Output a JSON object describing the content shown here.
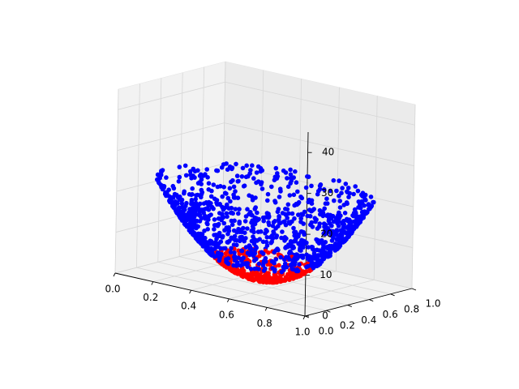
{
  "chart_data": {
    "type": "scatter",
    "projection": "3d",
    "title": "",
    "xlabel": "",
    "ylabel": "",
    "zlabel": "",
    "xlim": [
      0.0,
      1.0
    ],
    "ylim": [
      0.0,
      1.0
    ],
    "zlim": [
      0,
      45
    ],
    "xticks": [
      "0.0",
      "0.2",
      "0.4",
      "0.6",
      "0.8",
      "1.0"
    ],
    "yticks": [
      "0.0",
      "0.2",
      "0.4",
      "0.6",
      "0.8",
      "1.0"
    ],
    "zticks": [
      "0",
      "10",
      "20",
      "30",
      "40"
    ],
    "grid": true,
    "surface": "z = 45 * ((x - 0.5)^2 + (y - 0.5)^2) * 2",
    "threshold_z": 5,
    "series": [
      {
        "color": "#ff0000",
        "rule": "z < 5"
      },
      {
        "color": "#0000ff",
        "rule": "z >= 5"
      }
    ]
  }
}
